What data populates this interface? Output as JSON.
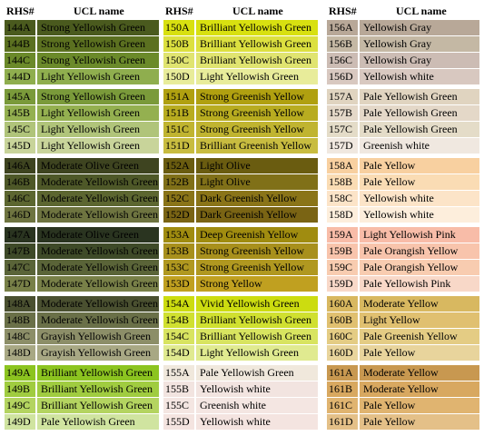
{
  "columns": [
    {
      "code_header": "RHS#",
      "name_header": "UCL name",
      "groups": [
        [
          {
            "code": "144A",
            "name": "Strong Yellowish Green",
            "color": "#4a5a1e"
          },
          {
            "code": "144B",
            "name": "Strong Yellowish Green",
            "color": "#5b7020"
          },
          {
            "code": "144C",
            "name": "Strong Yellowish Green",
            "color": "#6b8a2a"
          },
          {
            "code": "144D",
            "name": "Light Yellowish Green",
            "color": "#8fae4e"
          }
        ],
        [
          {
            "code": "145A",
            "name": "Strong Yellowish Green",
            "color": "#7a9a3a"
          },
          {
            "code": "145B",
            "name": "Light Yellowish Green",
            "color": "#94b050"
          },
          {
            "code": "145C",
            "name": "Light Yellowish Green",
            "color": "#b0c47a"
          },
          {
            "code": "145D",
            "name": "Light Yellowish Green",
            "color": "#c8d49a"
          }
        ],
        [
          {
            "code": "146A",
            "name": "Moderate Olive Green",
            "color": "#3e4420"
          },
          {
            "code": "146B",
            "name": "Moderate Yellowish Green",
            "color": "#4e5828"
          },
          {
            "code": "146C",
            "name": "Moderate Yellowish Green",
            "color": "#5c6630"
          },
          {
            "code": "146D",
            "name": "Moderate Yellowish Green",
            "color": "#6e7440"
          }
        ],
        [
          {
            "code": "147A",
            "name": "Moderate Olive Green",
            "color": "#2a3420"
          },
          {
            "code": "147B",
            "name": "Moderate Yellowish Green",
            "color": "#3e4a28"
          },
          {
            "code": "147C",
            "name": "Moderate Yellowish Green",
            "color": "#5a6438"
          },
          {
            "code": "147D",
            "name": "Moderate Yellowish Green",
            "color": "#788048"
          }
        ],
        [
          {
            "code": "148A",
            "name": "Moderate Yellowish Green",
            "color": "#4a5030"
          },
          {
            "code": "148B",
            "name": "Moderate Yellowish Green",
            "color": "#6a7048"
          },
          {
            "code": "148C",
            "name": "Grayish Yellowish Green",
            "color": "#8c8e68"
          },
          {
            "code": "148D",
            "name": "Grayish Yellowish Green",
            "color": "#a8a884"
          }
        ],
        [
          {
            "code": "149A",
            "name": "Brilliant Yellowish Green",
            "color": "#8cc420"
          },
          {
            "code": "149B",
            "name": "Brilliant Yellowish Green",
            "color": "#a0cc40"
          },
          {
            "code": "149C",
            "name": "Brilliant Yellowish Green",
            "color": "#b4d460"
          },
          {
            "code": "149D",
            "name": "Pale Yellowish Green",
            "color": "#d0e4a0"
          }
        ]
      ]
    },
    {
      "code_header": "RHS#",
      "name_header": "UCL name",
      "groups": [
        [
          {
            "code": "150A",
            "name": "Brilliant Yellowish Green",
            "color": "#d8e010"
          },
          {
            "code": "150B",
            "name": "Brilliant Yellowish Green",
            "color": "#dce040"
          },
          {
            "code": "150C",
            "name": "Brilliant Yellowish Green",
            "color": "#e0e470"
          },
          {
            "code": "150D",
            "name": "Light Yellowish Green",
            "color": "#e8ec9a"
          }
        ],
        [
          {
            "code": "151A",
            "name": "Strong Greenish Yellow",
            "color": "#b0a010"
          },
          {
            "code": "151B",
            "name": "Strong Greenish Yellow",
            "color": "#b8ac20"
          },
          {
            "code": "151C",
            "name": "Strong Greenish Yellow",
            "color": "#c0b430"
          },
          {
            "code": "151D",
            "name": "Brilliant Greenish Yellow",
            "color": "#c8bc40"
          }
        ],
        [
          {
            "code": "152A",
            "name": "Light Olive",
            "color": "#6a5c10"
          },
          {
            "code": "152B",
            "name": "Light Olive",
            "color": "#807018"
          },
          {
            "code": "152C",
            "name": "Dark Greenish Yellow",
            "color": "#8a7418"
          },
          {
            "code": "152D",
            "name": "Dark Greenish Yellow",
            "color": "#7a6414"
          }
        ],
        [
          {
            "code": "153A",
            "name": "Deep Greenish Yellow",
            "color": "#a08c10"
          },
          {
            "code": "153B",
            "name": "Strong Greenish Yellow",
            "color": "#a8901c"
          },
          {
            "code": "153C",
            "name": "Strong Greenish Yellow",
            "color": "#b09820"
          },
          {
            "code": "153D",
            "name": "Strong Yellow",
            "color": "#c0a020"
          }
        ],
        [
          {
            "code": "154A",
            "name": "Vivid Yellowish Green",
            "color": "#ccdc10"
          },
          {
            "code": "154B",
            "name": "Brilliant Yellowish Green",
            "color": "#d0e030"
          },
          {
            "code": "154C",
            "name": "Brilliant Yellowish Green",
            "color": "#d8e460"
          },
          {
            "code": "154D",
            "name": "Light Yellowish Green",
            "color": "#e0ea90"
          }
        ],
        [
          {
            "code": "155A",
            "name": "Pale Yellowish Green",
            "color": "#f0e8dc"
          },
          {
            "code": "155B",
            "name": "Yellowish white",
            "color": "#f2e4e0"
          },
          {
            "code": "155C",
            "name": "Greenish white",
            "color": "#f4e6e2"
          },
          {
            "code": "155D",
            "name": "Yellowish white",
            "color": "#f4e4e0"
          }
        ]
      ]
    },
    {
      "code_header": "RHS#",
      "name_header": "UCL name",
      "groups": [
        [
          {
            "code": "156A",
            "name": "Yellowish Gray",
            "color": "#b8a898"
          },
          {
            "code": "156B",
            "name": "Yellowish Gray",
            "color": "#c4b8a4"
          },
          {
            "code": "156C",
            "name": "Yellowish Gray",
            "color": "#ccbcb4"
          },
          {
            "code": "156D",
            "name": "Yellowish white",
            "color": "#d8c8c0"
          }
        ],
        [
          {
            "code": "157A",
            "name": "Pale Yellowish Green",
            "color": "#e0d4c0"
          },
          {
            "code": "157B",
            "name": "Pale Yellowish Green",
            "color": "#e4d8c8"
          },
          {
            "code": "157C",
            "name": "Pale Yellowish Green",
            "color": "#e4dcc8"
          },
          {
            "code": "157D",
            "name": "Greenish white",
            "color": "#f0e8e0"
          }
        ],
        [
          {
            "code": "158A",
            "name": "Pale Yellow",
            "color": "#f8d0a0"
          },
          {
            "code": "158B",
            "name": "Pale Yellow",
            "color": "#fadcb4"
          },
          {
            "code": "158C",
            "name": "Yellowish white",
            "color": "#fce4c8"
          },
          {
            "code": "158D",
            "name": "Yellowish white",
            "color": "#fdeedc"
          }
        ],
        [
          {
            "code": "159A",
            "name": "Light Yellowish Pink",
            "color": "#f8bca8"
          },
          {
            "code": "159B",
            "name": "Pale Orangish Yellow",
            "color": "#f8c4ac"
          },
          {
            "code": "159C",
            "name": "Pale Orangish Yellow",
            "color": "#f8ccb0"
          },
          {
            "code": "159D",
            "name": "Pale Yellowish Pink",
            "color": "#f8d8c8"
          }
        ],
        [
          {
            "code": "160A",
            "name": "Moderate Yellow",
            "color": "#d8b860"
          },
          {
            "code": "160B",
            "name": "Light Yellow",
            "color": "#e0c070"
          },
          {
            "code": "160C",
            "name": "Pale Greenish Yellow",
            "color": "#e4cc84"
          },
          {
            "code": "160D",
            "name": "Pale Yellow",
            "color": "#e8d49c"
          }
        ],
        [
          {
            "code": "161A",
            "name": "Moderate Yellow",
            "color": "#c89850"
          },
          {
            "code": "161B",
            "name": "Moderate Yellow",
            "color": "#d8a860"
          },
          {
            "code": "161C",
            "name": "Pale Yellow",
            "color": "#e0b470"
          },
          {
            "code": "161D",
            "name": "Pale Yellow",
            "color": "#e4c088"
          }
        ]
      ]
    }
  ]
}
